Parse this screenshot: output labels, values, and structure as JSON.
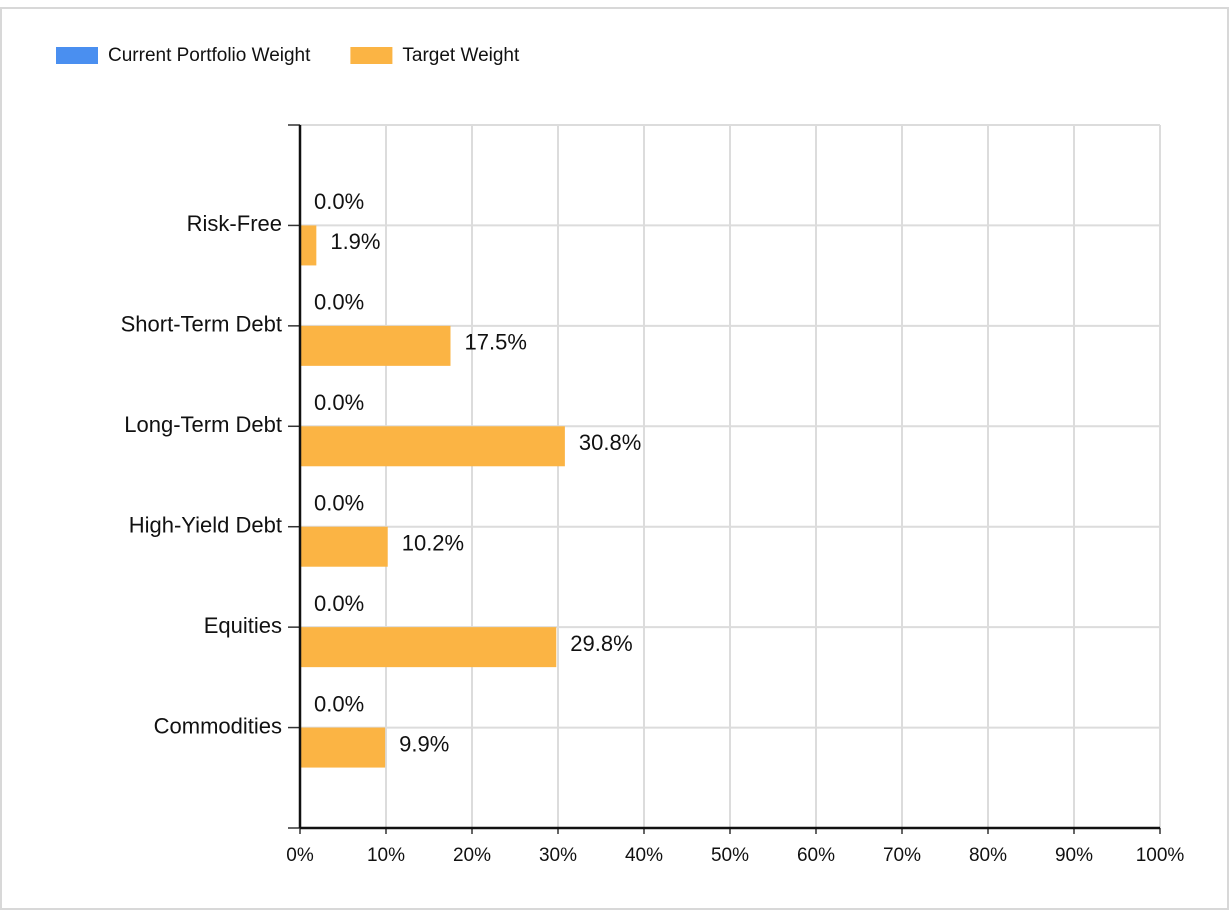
{
  "chart_data": {
    "type": "hbar",
    "categories": [
      "Risk-Free",
      "Short-Term Debt",
      "Long-Term Debt",
      "High-Yield Debt",
      "Equities",
      "Commodities"
    ],
    "series": [
      {
        "name": "Current Portfolio Weight",
        "color": "#4a8ff0",
        "values": [
          0,
          0,
          0,
          0,
          0,
          0
        ],
        "value_labels": [
          "0.0%",
          "0.0%",
          "0.0%",
          "0.0%",
          "0.0%",
          "0.0%"
        ]
      },
      {
        "name": "Target Weight",
        "color": "#fbb444",
        "values": [
          1.9,
          17.5,
          30.8,
          10.2,
          29.8,
          9.9
        ],
        "value_labels": [
          "1.9%",
          "17.5%",
          "30.8%",
          "10.2%",
          "29.8%",
          "9.9%"
        ]
      }
    ],
    "xlim": [
      0,
      100
    ],
    "xticks": [
      {
        "value": 0,
        "label": "0%"
      },
      {
        "value": 10,
        "label": "10%"
      },
      {
        "value": 20,
        "label": "20%"
      },
      {
        "value": 30,
        "label": "30%"
      },
      {
        "value": 40,
        "label": "40%"
      },
      {
        "value": 50,
        "label": "50%"
      },
      {
        "value": 60,
        "label": "60%"
      },
      {
        "value": 70,
        "label": "70%"
      },
      {
        "value": 80,
        "label": "80%"
      },
      {
        "value": 90,
        "label": "90%"
      },
      {
        "value": 100,
        "label": "100%"
      }
    ],
    "grid": true,
    "legend": "top-left"
  }
}
